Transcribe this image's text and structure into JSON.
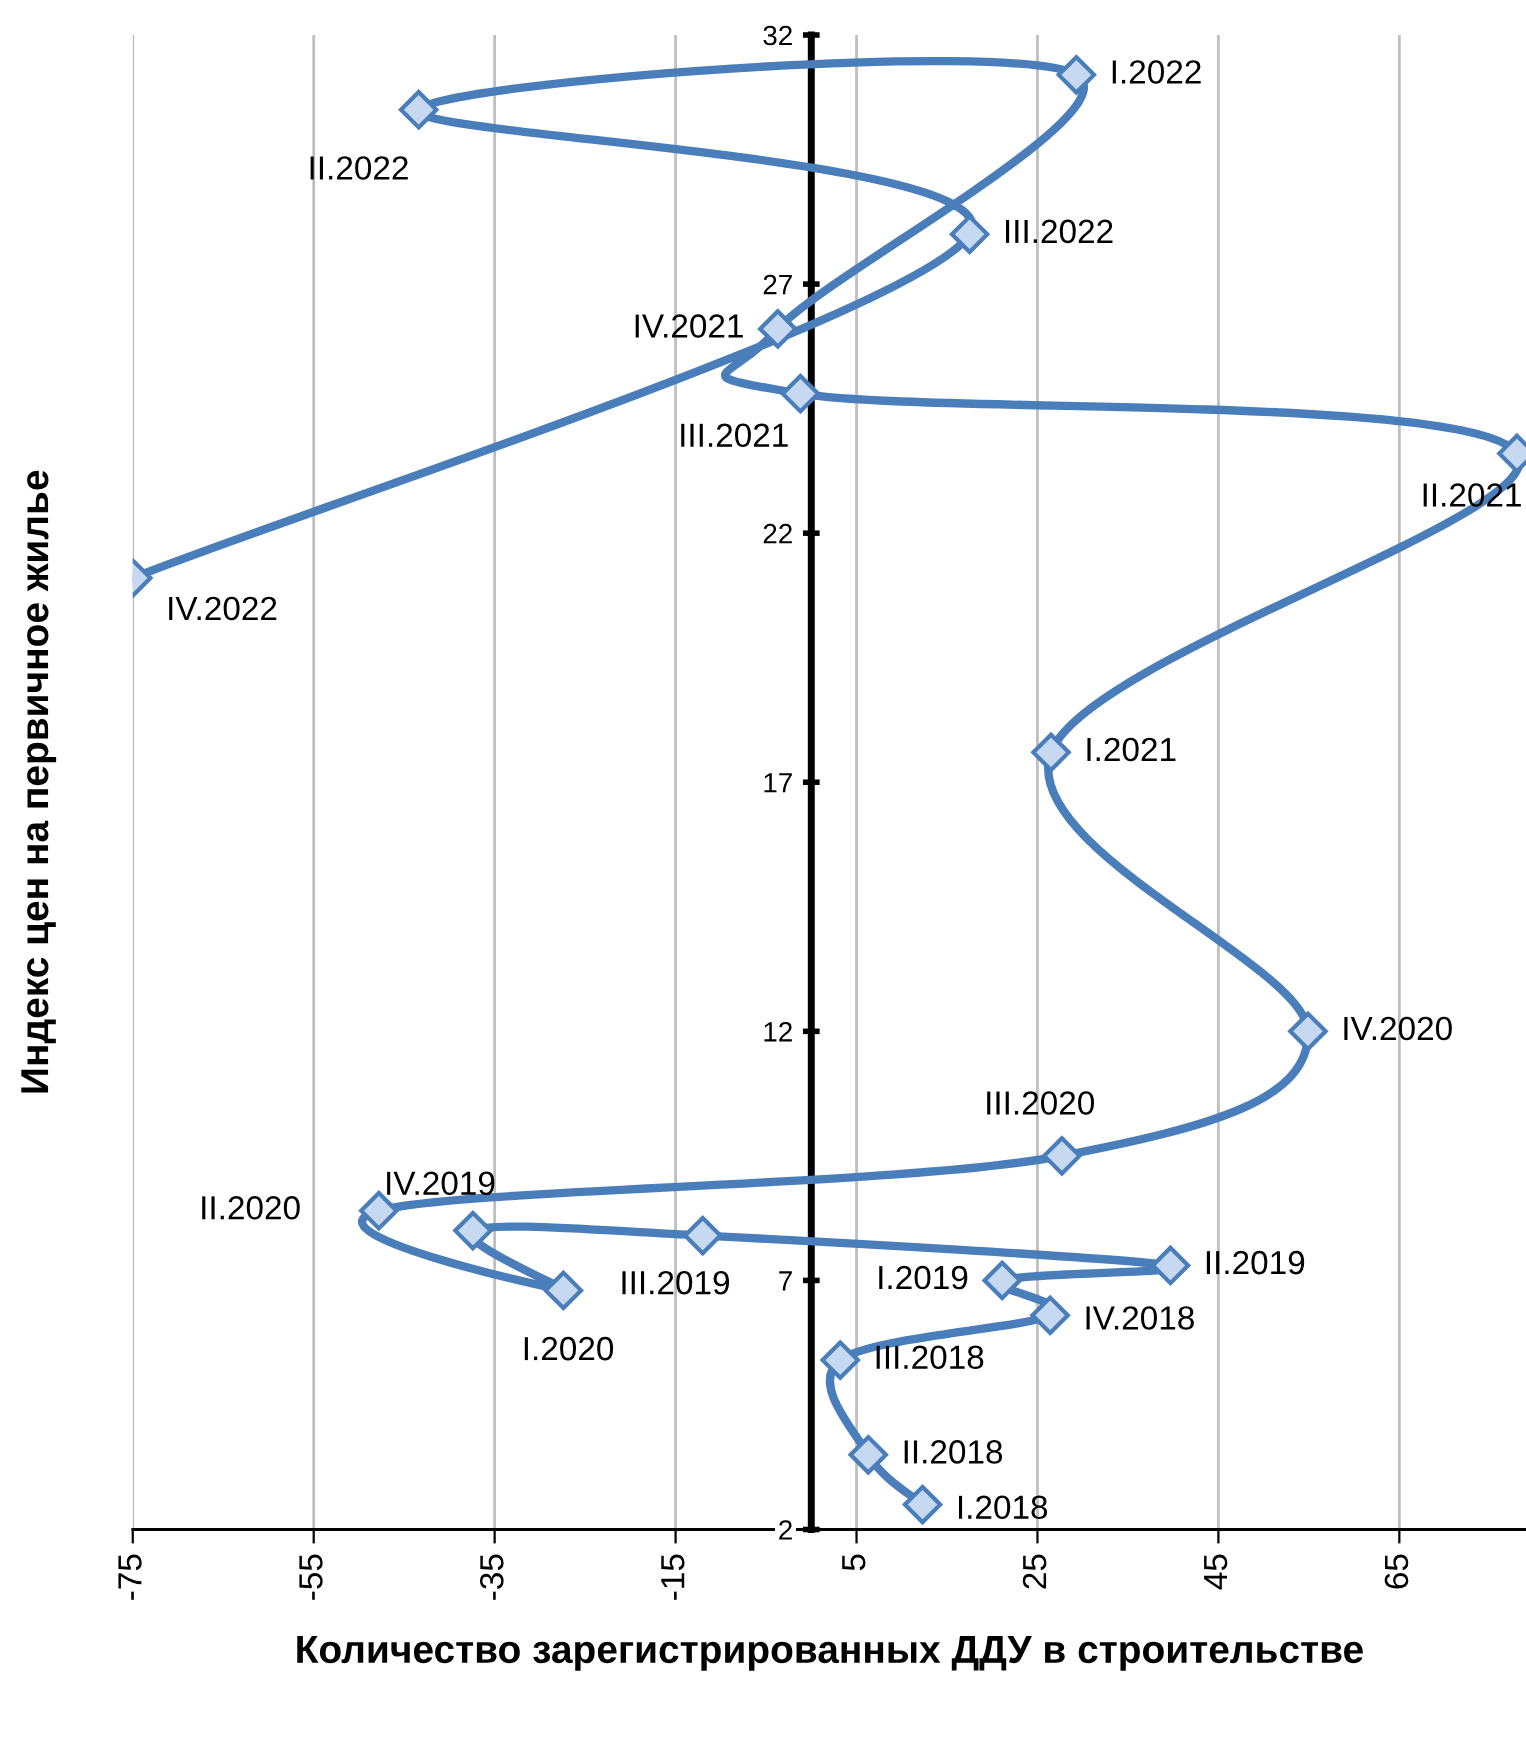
{
  "chart_data": {
    "type": "line",
    "xlabel": "Количество зарегистрированных ДДУ в строительстве",
    "ylabel": "Индекс цен на первичное жилье",
    "xlim": [
      -75,
      79
    ],
    "xticks": [
      -75,
      -55,
      -35,
      -15,
      5,
      25,
      45,
      65
    ],
    "ylim": [
      2,
      32
    ],
    "yticks": [
      2,
      7,
      12,
      17,
      22,
      27,
      32
    ],
    "grid": "x",
    "legend": false,
    "marker": "diamond",
    "line_style": "solid",
    "series": [
      {
        "color": "#4a7ebb",
        "x": [
          12.3,
          6.3,
          3.2,
          26.4,
          21.1,
          39.7,
          -12,
          -37.4,
          -27.4,
          -47.8,
          27.7,
          54.9,
          26.5,
          78,
          -1.2,
          -3.7,
          29.3,
          -43.4,
          17.5,
          -75
        ],
        "values": [
          2.5,
          3.5,
          5.4,
          6.3,
          7.0,
          7.3,
          7.9,
          8.0,
          6.8,
          8.4,
          9.5,
          12.0,
          17.6,
          23.6,
          24.8,
          26.1,
          31.2,
          30.5,
          28.0,
          21.1
        ]
      }
    ],
    "annotations": [
      {
        "text": "I.2018",
        "x": 12.3,
        "y": 2.5
      },
      {
        "text": "II.2018",
        "x": 6.3,
        "y": 3.5
      },
      {
        "text": "III.2018",
        "x": 3.2,
        "y": 5.4
      },
      {
        "text": "IV.2018",
        "x": 26.4,
        "y": 6.3
      },
      {
        "text": "I.2019",
        "x": 21.1,
        "y": 7.0
      },
      {
        "text": "II.2019",
        "x": 39.7,
        "y": 7.3
      },
      {
        "text": "III.2019",
        "x": -12,
        "y": 7.9
      },
      {
        "text": "IV.2019",
        "x": -37.4,
        "y": 8.0
      },
      {
        "text": "I.2020",
        "x": -27.4,
        "y": 6.8
      },
      {
        "text": "II.2020",
        "x": -47.8,
        "y": 8.4
      },
      {
        "text": "III.2020",
        "x": 27.7,
        "y": 9.5
      },
      {
        "text": "IV.2020",
        "x": 54.9,
        "y": 12.0
      },
      {
        "text": "I.2021",
        "x": 26.5,
        "y": 17.6
      },
      {
        "text": "II.2021",
        "x": 78,
        "y": 23.6
      },
      {
        "text": "III.2021",
        "x": -1.2,
        "y": 24.8
      },
      {
        "text": "IV.2021",
        "x": -3.7,
        "y": 26.1
      },
      {
        "text": "I.2022",
        "x": 29.3,
        "y": 31.2
      },
      {
        "text": "II.2022",
        "x": -43.4,
        "y": 30.5
      },
      {
        "text": "III.2022",
        "x": 17.5,
        "y": 28.0
      },
      {
        "text": "IV.2022",
        "x": -75,
        "y": 21.1
      }
    ]
  }
}
